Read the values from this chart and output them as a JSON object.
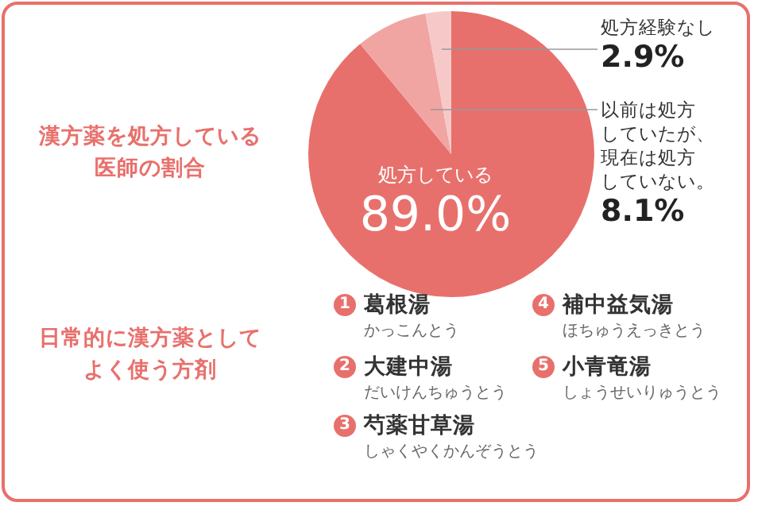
{
  "chart_data": {
    "type": "pie",
    "title": "漢方薬を処方している医師の割合",
    "categories": [
      "処方している",
      "以前は処方していたが、現在は処方していない。",
      "処方経験なし"
    ],
    "values": [
      89.0,
      8.1,
      2.9
    ],
    "value_labels": [
      "89.0%",
      "8.1%",
      "2.9%"
    ],
    "colors": [
      "#e8706c",
      "#f0a5a3",
      "#f6c9c8"
    ],
    "legend": false,
    "annotations": [
      "日常的に漢方薬としてよく使う方剤",
      "1",
      "葛根湯",
      "かっこんとう",
      "2",
      "大建中湯",
      "だいけんちゅうとう",
      "3",
      "芍薬甘草湯",
      "しゃくやくかんぞうとう",
      "4",
      "補中益気湯",
      "ほちゅうえっきとう",
      "5",
      "小青竜湯",
      "しょうせいりゅうとう"
    ]
  }
}
